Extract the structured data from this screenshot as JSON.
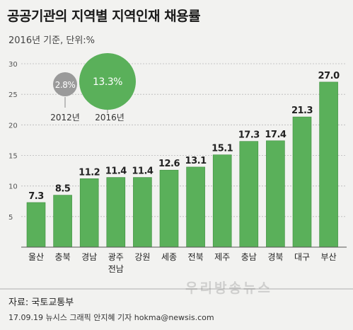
{
  "header": {
    "title": "공공기관의 지역별 지역인재 채용률",
    "subtitle": "2016년 기준, 단위:%"
  },
  "footer": {
    "source": "자료: 국토교통부",
    "credit": "17.09.19 뉴시스 그래픽 안지혜 기자 hokma@newsis.com",
    "watermark": "우리방송뉴스"
  },
  "colors": {
    "bar": "#5ab05a",
    "bar_edge": "#3f8f3f",
    "bubble_2012": "#9a9a9a",
    "bubble_2016": "#5ab05a"
  },
  "chart_data": [
    {
      "type": "bar",
      "categories": [
        "울산",
        "충북",
        "경남",
        "광주\n전남",
        "강원",
        "세종",
        "전북",
        "제주",
        "충남",
        "경북",
        "대구",
        "부산"
      ],
      "values": [
        7.3,
        8.5,
        11.2,
        11.4,
        11.4,
        12.6,
        13.1,
        15.1,
        17.3,
        17.4,
        21.3,
        27.0
      ],
      "value_labels": [
        "7.3",
        "8.5",
        "11.2",
        "11.4",
        "11.4",
        "12.6",
        "13.1",
        "15.1",
        "17.3",
        "17.4",
        "21.3",
        "27.0"
      ],
      "ylim": [
        0,
        30
      ],
      "yticks": [
        5,
        10,
        15,
        20,
        25,
        30
      ],
      "grid": true
    },
    {
      "type": "bubble",
      "categories": [
        "2012년",
        "2016년"
      ],
      "values": [
        2.8,
        13.3
      ],
      "value_labels": [
        "2.8%",
        "13.3%"
      ]
    }
  ]
}
